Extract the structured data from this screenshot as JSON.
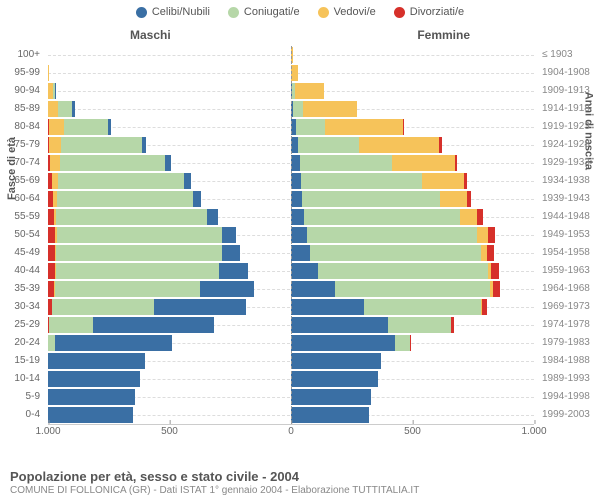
{
  "legend": [
    {
      "label": "Celibi/Nubili",
      "color": "#3a6fa4"
    },
    {
      "label": "Coniugati/e",
      "color": "#b6d7a8"
    },
    {
      "label": "Vedovi/e",
      "color": "#f6c35a"
    },
    {
      "label": "Divorziati/e",
      "color": "#d6302a"
    }
  ],
  "headers": {
    "male": "Maschi",
    "female": "Femmine"
  },
  "axes": {
    "left": "Fasce di età",
    "right": "Anni di nascita"
  },
  "max": 1000,
  "xticks": [
    "1.000",
    "500",
    "0",
    "500",
    "1.000"
  ],
  "footer": {
    "title": "Popolazione per età, sesso e stato civile - 2004",
    "sub": "COMUNE DI FOLLONICA (GR) - Dati ISTAT 1° gennaio 2004 - Elaborazione TUTTITALIA.IT"
  },
  "colors": {
    "celibi": "#3a6fa4",
    "coniugati": "#b6d7a8",
    "vedovi": "#f6c35a",
    "divorziati": "#d6302a"
  },
  "rows": [
    {
      "age": "100+",
      "year": "≤ 1903",
      "m": [
        0,
        0,
        0,
        0
      ],
      "f": [
        0,
        0,
        10,
        0
      ]
    },
    {
      "age": "95-99",
      "year": "1904-1908",
      "m": [
        0,
        0,
        5,
        0
      ],
      "f": [
        0,
        0,
        30,
        0
      ]
    },
    {
      "age": "90-94",
      "year": "1909-1913",
      "m": [
        5,
        10,
        20,
        0
      ],
      "f": [
        5,
        10,
        120,
        0
      ]
    },
    {
      "age": "85-89",
      "year": "1914-1918",
      "m": [
        10,
        60,
        40,
        0
      ],
      "f": [
        10,
        40,
        220,
        0
      ]
    },
    {
      "age": "80-84",
      "year": "1919-1923",
      "m": [
        15,
        180,
        60,
        5
      ],
      "f": [
        20,
        120,
        320,
        5
      ]
    },
    {
      "age": "75-79",
      "year": "1924-1928",
      "m": [
        20,
        330,
        50,
        5
      ],
      "f": [
        30,
        250,
        330,
        10
      ]
    },
    {
      "age": "70-74",
      "year": "1929-1933",
      "m": [
        25,
        430,
        40,
        10
      ],
      "f": [
        35,
        380,
        260,
        10
      ]
    },
    {
      "age": "65-69",
      "year": "1934-1938",
      "m": [
        30,
        520,
        25,
        15
      ],
      "f": [
        40,
        500,
        170,
        15
      ]
    },
    {
      "age": "60-64",
      "year": "1939-1943",
      "m": [
        35,
        560,
        15,
        20
      ],
      "f": [
        45,
        570,
        110,
        15
      ]
    },
    {
      "age": "55-59",
      "year": "1944-1948",
      "m": [
        45,
        620,
        10,
        25
      ],
      "f": [
        55,
        640,
        70,
        25
      ]
    },
    {
      "age": "50-54",
      "year": "1949-1953",
      "m": [
        55,
        680,
        8,
        30
      ],
      "f": [
        65,
        700,
        45,
        30
      ]
    },
    {
      "age": "45-49",
      "year": "1954-1958",
      "m": [
        75,
        680,
        5,
        30
      ],
      "f": [
        80,
        700,
        25,
        30
      ]
    },
    {
      "age": "40-44",
      "year": "1959-1963",
      "m": [
        120,
        670,
        3,
        30
      ],
      "f": [
        110,
        700,
        15,
        30
      ]
    },
    {
      "age": "35-39",
      "year": "1964-1968",
      "m": [
        220,
        600,
        2,
        25
      ],
      "f": [
        180,
        640,
        10,
        30
      ]
    },
    {
      "age": "30-34",
      "year": "1969-1973",
      "m": [
        380,
        420,
        0,
        15
      ],
      "f": [
        300,
        480,
        5,
        20
      ]
    },
    {
      "age": "25-29",
      "year": "1974-1978",
      "m": [
        500,
        180,
        0,
        5
      ],
      "f": [
        400,
        260,
        0,
        10
      ]
    },
    {
      "age": "20-24",
      "year": "1979-1983",
      "m": [
        480,
        30,
        0,
        0
      ],
      "f": [
        430,
        60,
        0,
        2
      ]
    },
    {
      "age": "15-19",
      "year": "1984-1988",
      "m": [
        400,
        0,
        0,
        0
      ],
      "f": [
        370,
        0,
        0,
        0
      ]
    },
    {
      "age": "10-14",
      "year": "1989-1993",
      "m": [
        380,
        0,
        0,
        0
      ],
      "f": [
        360,
        0,
        0,
        0
      ]
    },
    {
      "age": "5-9",
      "year": "1994-1998",
      "m": [
        360,
        0,
        0,
        0
      ],
      "f": [
        330,
        0,
        0,
        0
      ]
    },
    {
      "age": "0-4",
      "year": "1999-2003",
      "m": [
        350,
        0,
        0,
        0
      ],
      "f": [
        320,
        0,
        0,
        0
      ]
    }
  ]
}
